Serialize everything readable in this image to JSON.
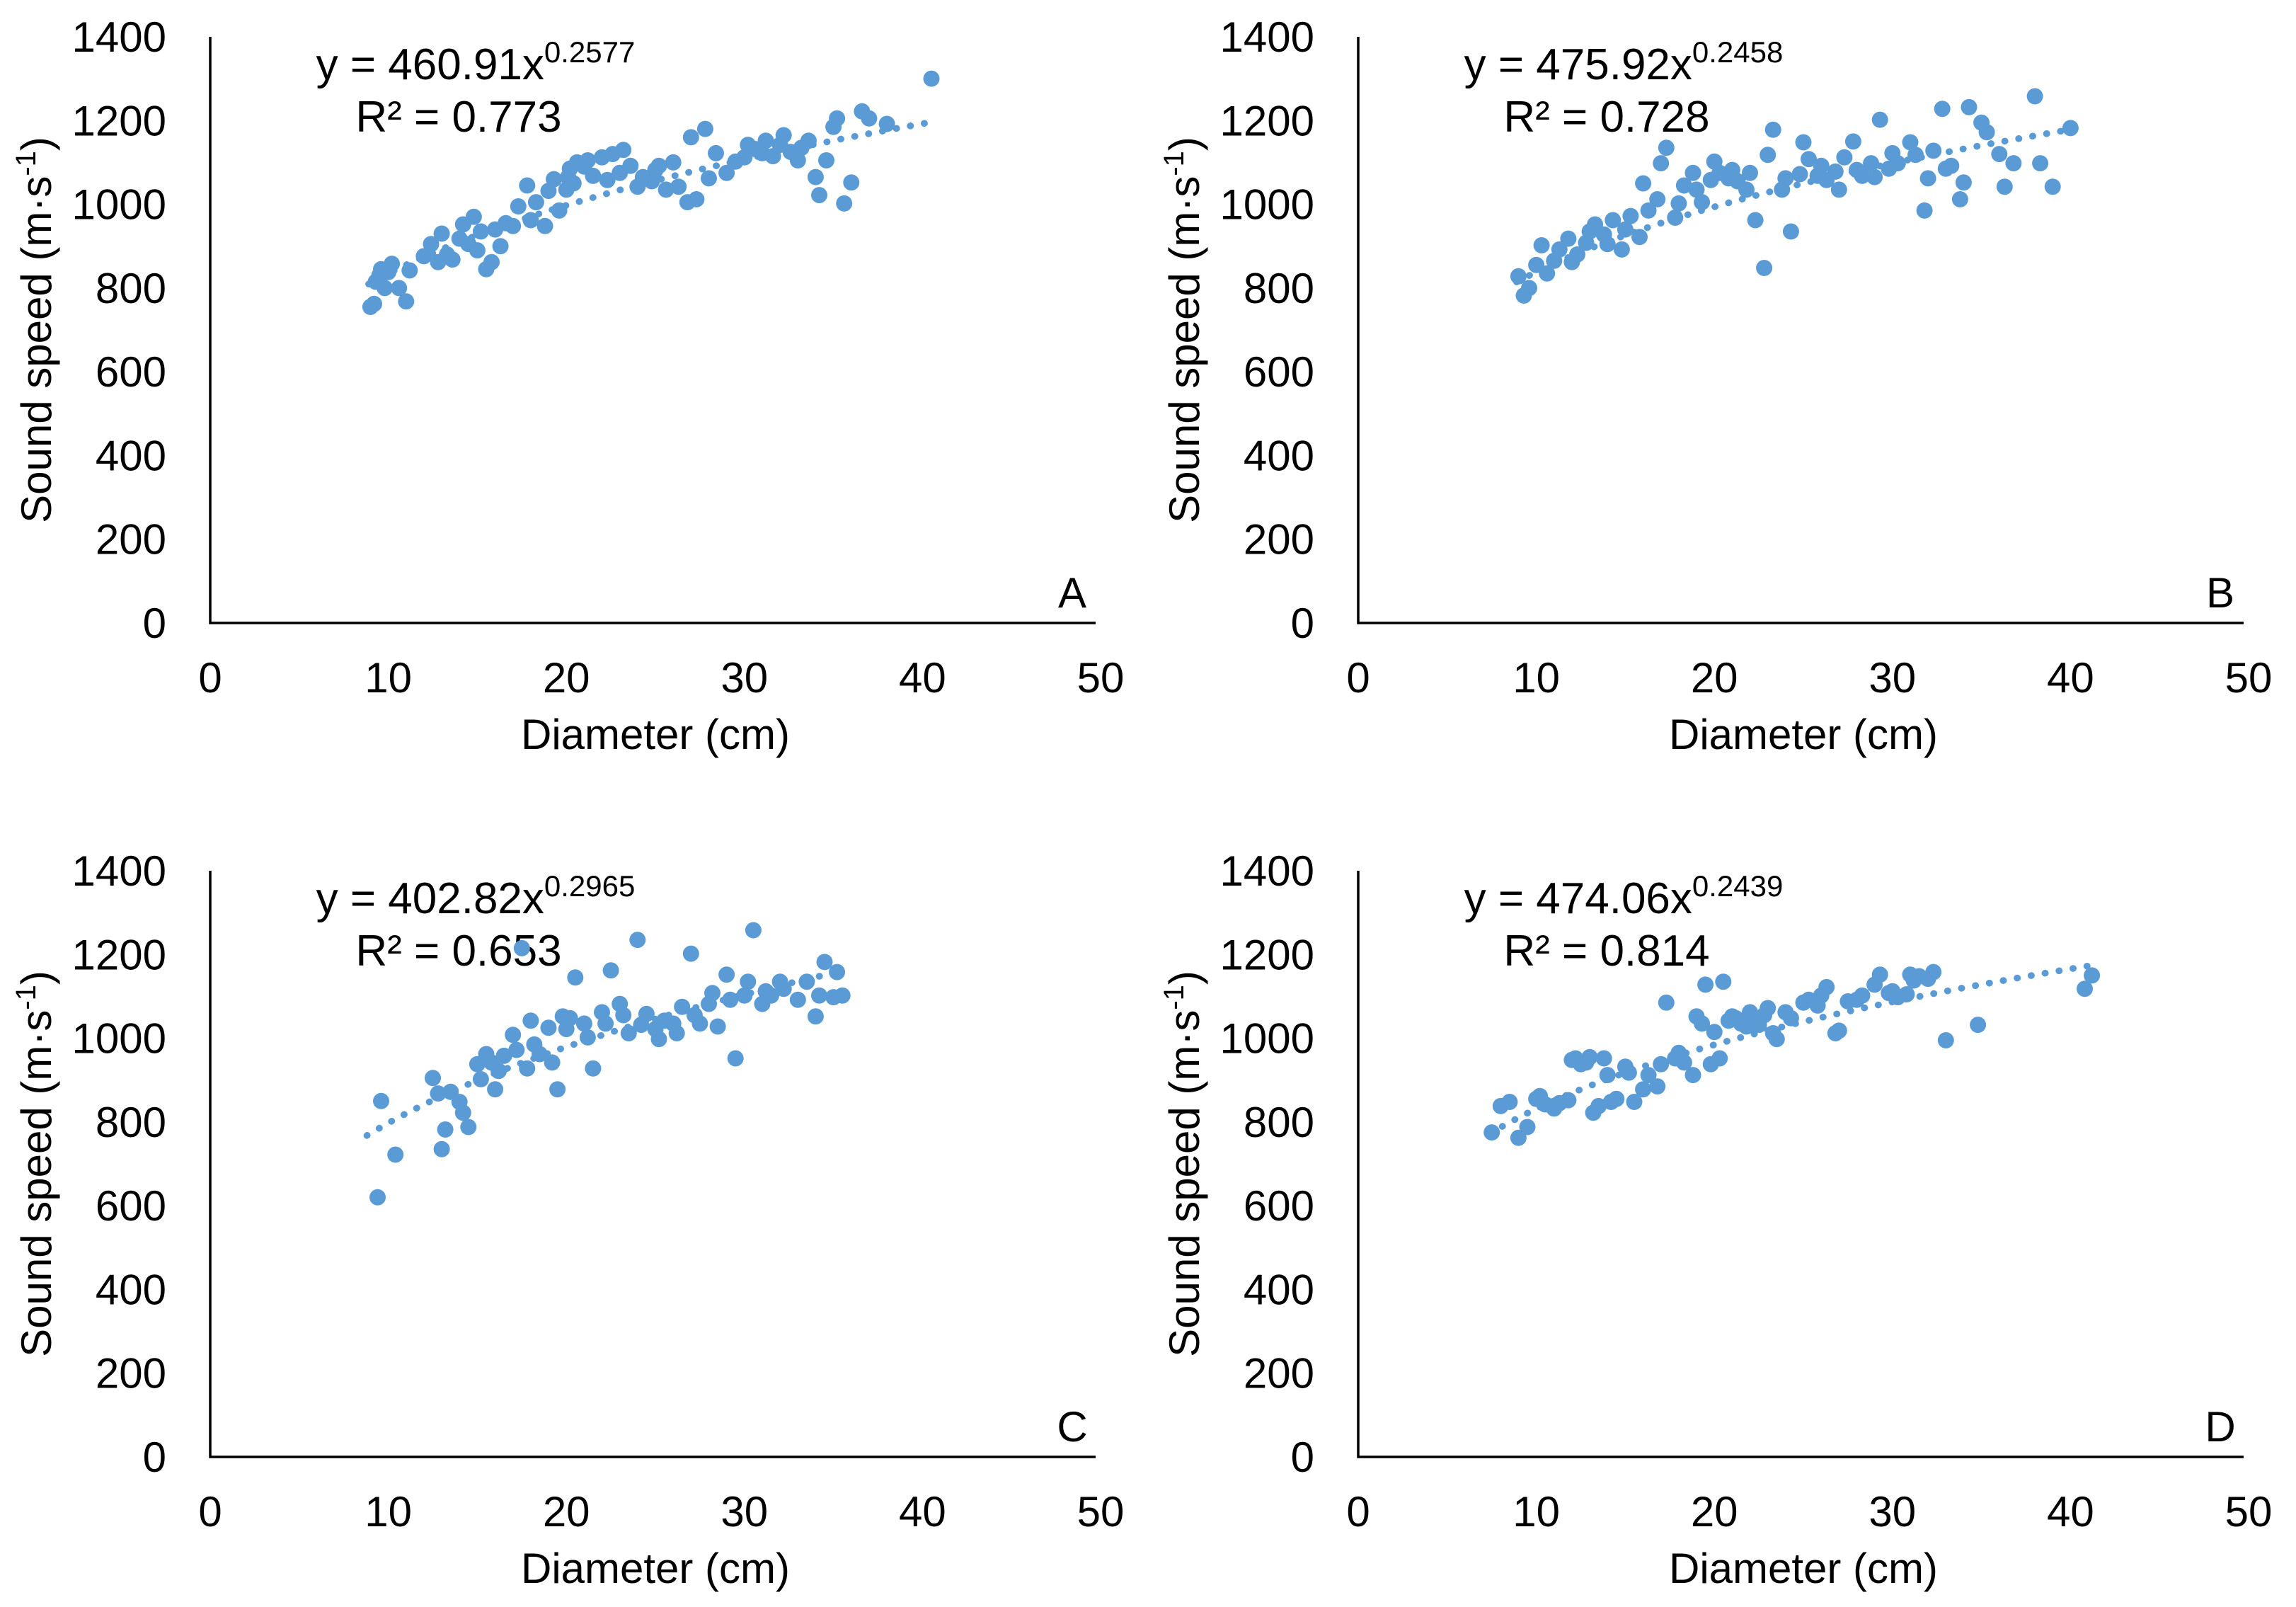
{
  "figure": {
    "background": "#ffffff",
    "dot_color": "#5B9BD5",
    "trend_color": "#5B9BD5",
    "axis_color": "#000000",
    "text_color": "#000000",
    "xlabel": "Diameter (cm)",
    "ylabel": "Sound speed (m·s⁻¹)",
    "ylabel_prefix": "Sound speed (m·s",
    "ylabel_sup": "-1",
    "ylabel_suffix": ")",
    "xticks": [
      0,
      10,
      20,
      30,
      40,
      50
    ],
    "yticks": [
      0,
      200,
      400,
      600,
      800,
      1000,
      1200,
      1400
    ],
    "xlim": [
      0,
      50
    ],
    "ylim": [
      0,
      1400
    ],
    "grid": false,
    "legend": "none"
  },
  "chart_data": [
    {
      "type": "scatter",
      "panel_label": "A",
      "title": "",
      "xlabel": "Diameter (cm)",
      "ylabel": "Sound speed (m·s⁻¹)",
      "equation": "y = 460.91x^0.2577",
      "equation_prefix": "y = 460.91x",
      "equation_exponent": "0.2577",
      "r2_label": "R² = 0.773",
      "trend": {
        "a": 460.91,
        "b": 0.2577,
        "x_min": 8.9,
        "x_max": 40.2
      },
      "points": [
        [
          9,
          755
        ],
        [
          9.2,
          762
        ],
        [
          9.3,
          815
        ],
        [
          9.5,
          830
        ],
        [
          9.6,
          845
        ],
        [
          9.8,
          800
        ],
        [
          10,
          838
        ],
        [
          10.2,
          858
        ],
        [
          10.6,
          800
        ],
        [
          11,
          768
        ],
        [
          11.2,
          842
        ],
        [
          12,
          876
        ],
        [
          12.4,
          905
        ],
        [
          12.8,
          862
        ],
        [
          13,
          930
        ],
        [
          13.3,
          880
        ],
        [
          13.6,
          868
        ],
        [
          14,
          918
        ],
        [
          14.2,
          952
        ],
        [
          14.5,
          905
        ],
        [
          14.8,
          970
        ],
        [
          15,
          890
        ],
        [
          15.2,
          935
        ],
        [
          15.5,
          845
        ],
        [
          15.8,
          862
        ],
        [
          16,
          940
        ],
        [
          16.3,
          900
        ],
        [
          16.6,
          955
        ],
        [
          17,
          948
        ],
        [
          17.3,
          995
        ],
        [
          17.8,
          1045
        ],
        [
          18,
          962
        ],
        [
          18.3,
          1005
        ],
        [
          18.8,
          948
        ],
        [
          19,
          1032
        ],
        [
          19.3,
          1060
        ],
        [
          19.6,
          985
        ],
        [
          20,
          1035
        ],
        [
          20.1,
          1065
        ],
        [
          20.2,
          1085
        ],
        [
          20.4,
          1050
        ],
        [
          20.6,
          1100
        ],
        [
          21,
          1090
        ],
        [
          21.2,
          1105
        ],
        [
          21.5,
          1068
        ],
        [
          22,
          1112
        ],
        [
          22.3,
          1058
        ],
        [
          22.6,
          1120
        ],
        [
          23,
          1075
        ],
        [
          23.2,
          1130
        ],
        [
          23.6,
          1092
        ],
        [
          24,
          1042
        ],
        [
          24.3,
          1065
        ],
        [
          24.8,
          1055
        ],
        [
          25,
          1082
        ],
        [
          25.2,
          1092
        ],
        [
          25.6,
          1035
        ],
        [
          26,
          1100
        ],
        [
          26.3,
          1042
        ],
        [
          26.8,
          1005
        ],
        [
          27,
          1160
        ],
        [
          27.3,
          1012
        ],
        [
          27.8,
          1180
        ],
        [
          28,
          1062
        ],
        [
          28.4,
          1122
        ],
        [
          29,
          1075
        ],
        [
          29.5,
          1102
        ],
        [
          30,
          1112
        ],
        [
          30.2,
          1142
        ],
        [
          30.6,
          1132
        ],
        [
          31,
          1122
        ],
        [
          31.2,
          1152
        ],
        [
          31.6,
          1115
        ],
        [
          32,
          1142
        ],
        [
          32.2,
          1165
        ],
        [
          32.6,
          1125
        ],
        [
          33,
          1105
        ],
        [
          33.2,
          1135
        ],
        [
          33.6,
          1152
        ],
        [
          34,
          1065
        ],
        [
          34.2,
          1022
        ],
        [
          34.6,
          1105
        ],
        [
          35,
          1185
        ],
        [
          35.2,
          1205
        ],
        [
          35.6,
          1002
        ],
        [
          36,
          1052
        ],
        [
          36.6,
          1222
        ],
        [
          37,
          1205
        ],
        [
          38,
          1192
        ],
        [
          40.5,
          1300
        ]
      ]
    },
    {
      "type": "scatter",
      "panel_label": "B",
      "title": "",
      "xlabel": "Diameter (cm)",
      "ylabel": "Sound speed (m·s⁻¹)",
      "equation": "y = 475.92x^0.2458",
      "equation_prefix": "y = 475.92x",
      "equation_exponent": "0.2458",
      "r2_label": "R² = 0.728",
      "trend": {
        "a": 475.92,
        "b": 0.2458,
        "x_min": 8.9,
        "x_max": 40.2
      },
      "points": [
        [
          9,
          828
        ],
        [
          9.3,
          782
        ],
        [
          9.6,
          800
        ],
        [
          10,
          855
        ],
        [
          10.3,
          902
        ],
        [
          10.6,
          835
        ],
        [
          11,
          865
        ],
        [
          11.3,
          892
        ],
        [
          11.8,
          918
        ],
        [
          12,
          862
        ],
        [
          12.3,
          880
        ],
        [
          12.8,
          908
        ],
        [
          13,
          935
        ],
        [
          13.3,
          952
        ],
        [
          13.8,
          928
        ],
        [
          14,
          905
        ],
        [
          14.3,
          962
        ],
        [
          14.8,
          892
        ],
        [
          15,
          940
        ],
        [
          15.3,
          972
        ],
        [
          15.8,
          922
        ],
        [
          16,
          1050
        ],
        [
          16.3,
          985
        ],
        [
          16.8,
          1012
        ],
        [
          17,
          1098
        ],
        [
          17.3,
          1135
        ],
        [
          17.8,
          968
        ],
        [
          18,
          1002
        ],
        [
          18.3,
          1045
        ],
        [
          18.8,
          1075
        ],
        [
          19,
          1035
        ],
        [
          19.3,
          1005
        ],
        [
          19.8,
          1058
        ],
        [
          20,
          1102
        ],
        [
          20.3,
          1075
        ],
        [
          20.8,
          1062
        ],
        [
          21,
          1082
        ],
        [
          21.3,
          1055
        ],
        [
          21.8,
          1035
        ],
        [
          22,
          1075
        ],
        [
          22.3,
          962
        ],
        [
          22.8,
          848
        ],
        [
          23,
          1118
        ],
        [
          23.3,
          1178
        ],
        [
          23.8,
          1035
        ],
        [
          24,
          1062
        ],
        [
          24.3,
          935
        ],
        [
          24.8,
          1072
        ],
        [
          25,
          1148
        ],
        [
          25.3,
          1108
        ],
        [
          25.8,
          1068
        ],
        [
          26,
          1092
        ],
        [
          26.3,
          1058
        ],
        [
          26.8,
          1078
        ],
        [
          27,
          1035
        ],
        [
          27.3,
          1112
        ],
        [
          27.8,
          1150
        ],
        [
          28,
          1082
        ],
        [
          28.3,
          1068
        ],
        [
          28.8,
          1098
        ],
        [
          29,
          1065
        ],
        [
          29.3,
          1202
        ],
        [
          29.8,
          1085
        ],
        [
          30,
          1122
        ],
        [
          30.3,
          1098
        ],
        [
          31,
          1148
        ],
        [
          31.3,
          1118
        ],
        [
          31.8,
          985
        ],
        [
          32,
          1062
        ],
        [
          32.3,
          1128
        ],
        [
          32.8,
          1228
        ],
        [
          33,
          1085
        ],
        [
          33.3,
          1092
        ],
        [
          33.8,
          1012
        ],
        [
          34,
          1052
        ],
        [
          34.3,
          1232
        ],
        [
          35,
          1195
        ],
        [
          35.3,
          1172
        ],
        [
          36,
          1120
        ],
        [
          36.3,
          1042
        ],
        [
          36.8,
          1098
        ],
        [
          38,
          1258
        ],
        [
          38.3,
          1098
        ],
        [
          39,
          1042
        ],
        [
          40,
          1182
        ]
      ]
    },
    {
      "type": "scatter",
      "panel_label": "C",
      "title": "",
      "xlabel": "Diameter (cm)",
      "ylabel": "Sound speed (m·s⁻¹)",
      "equation": "y = 402.82x^0.2965",
      "equation_prefix": "y = 402.82x",
      "equation_exponent": "0.2965",
      "r2_label": "R² = 0.653",
      "trend": {
        "a": 402.82,
        "b": 0.2965,
        "x_min": 8.8,
        "x_max": 35.6
      },
      "points": [
        [
          9.4,
          620
        ],
        [
          9.6,
          850
        ],
        [
          10.4,
          722
        ],
        [
          12.5,
          905
        ],
        [
          12.8,
          868
        ],
        [
          13,
          735
        ],
        [
          13.2,
          782
        ],
        [
          13.5,
          872
        ],
        [
          14,
          848
        ],
        [
          14.2,
          822
        ],
        [
          14.5,
          788
        ],
        [
          15,
          938
        ],
        [
          15.2,
          902
        ],
        [
          15.5,
          962
        ],
        [
          15.8,
          942
        ],
        [
          16,
          878
        ],
        [
          16.2,
          922
        ],
        [
          16.5,
          958
        ],
        [
          17,
          1008
        ],
        [
          17.2,
          972
        ],
        [
          17.5,
          1215
        ],
        [
          17.8,
          928
        ],
        [
          18,
          1042
        ],
        [
          18.2,
          985
        ],
        [
          18.5,
          962
        ],
        [
          19,
          1025
        ],
        [
          19.2,
          942
        ],
        [
          19.5,
          878
        ],
        [
          19.8,
          1052
        ],
        [
          20,
          1022
        ],
        [
          20.2,
          1048
        ],
        [
          20.5,
          1145
        ],
        [
          21,
          1035
        ],
        [
          21.2,
          1002
        ],
        [
          21.5,
          928
        ],
        [
          22,
          1062
        ],
        [
          22.2,
          1035
        ],
        [
          22.5,
          1162
        ],
        [
          23,
          1082
        ],
        [
          23.2,
          1055
        ],
        [
          23.5,
          1012
        ],
        [
          24,
          1235
        ],
        [
          24.2,
          1032
        ],
        [
          24.5,
          1058
        ],
        [
          25,
          1022
        ],
        [
          25.2,
          998
        ],
        [
          25.5,
          1042
        ],
        [
          26,
          1035
        ],
        [
          26.2,
          1012
        ],
        [
          26.5,
          1075
        ],
        [
          27,
          1202
        ],
        [
          27.2,
          1055
        ],
        [
          27.5,
          1035
        ],
        [
          28,
          1082
        ],
        [
          28.2,
          1108
        ],
        [
          28.5,
          1028
        ],
        [
          29,
          1152
        ],
        [
          29.2,
          1092
        ],
        [
          29.5,
          952
        ],
        [
          30,
          1102
        ],
        [
          30.2,
          1135
        ],
        [
          30.5,
          1258
        ],
        [
          31,
          1082
        ],
        [
          31.2,
          1112
        ],
        [
          31.5,
          1102
        ],
        [
          32,
          1135
        ],
        [
          32.2,
          1118
        ],
        [
          33,
          1092
        ],
        [
          33.5,
          1135
        ],
        [
          34,
          1052
        ],
        [
          34.2,
          1102
        ],
        [
          34.5,
          1182
        ],
        [
          35,
          1098
        ],
        [
          35.2,
          1158
        ],
        [
          35.5,
          1102
        ]
      ]
    },
    {
      "type": "scatter",
      "panel_label": "D",
      "title": "",
      "xlabel": "Diameter (cm)",
      "ylabel": "Sound speed (m·s⁻¹)",
      "equation": "y = 474.06x^0.2439",
      "equation_prefix": "y = 474.06x",
      "equation_exponent": "0.2439",
      "r2_label": "R² = 0.814",
      "trend": {
        "a": 474.06,
        "b": 0.2439,
        "x_min": 7.4,
        "x_max": 41.3
      },
      "points": [
        [
          7.5,
          775
        ],
        [
          8,
          838
        ],
        [
          8.5,
          848
        ],
        [
          9,
          762
        ],
        [
          9.5,
          788
        ],
        [
          10,
          855
        ],
        [
          10.2,
          862
        ],
        [
          10.5,
          842
        ],
        [
          11,
          832
        ],
        [
          11.3,
          845
        ],
        [
          11.8,
          852
        ],
        [
          12,
          948
        ],
        [
          12.2,
          952
        ],
        [
          12.5,
          938
        ],
        [
          12.8,
          942
        ],
        [
          13,
          955
        ],
        [
          13.2,
          822
        ],
        [
          13.5,
          838
        ],
        [
          13.8,
          952
        ],
        [
          14,
          912
        ],
        [
          14.2,
          848
        ],
        [
          14.5,
          855
        ],
        [
          15,
          932
        ],
        [
          15.2,
          918
        ],
        [
          15.5,
          848
        ],
        [
          16,
          878
        ],
        [
          16.3,
          912
        ],
        [
          16.8,
          885
        ],
        [
          17,
          938
        ],
        [
          17.3,
          1085
        ],
        [
          17.8,
          952
        ],
        [
          18,
          965
        ],
        [
          18.3,
          942
        ],
        [
          18.8,
          912
        ],
        [
          19,
          1052
        ],
        [
          19.3,
          1035
        ],
        [
          19.5,
          1128
        ],
        [
          19.8,
          938
        ],
        [
          20,
          1015
        ],
        [
          20.3,
          952
        ],
        [
          20.5,
          1135
        ],
        [
          20.8,
          1042
        ],
        [
          21,
          1052
        ],
        [
          21.2,
          1048
        ],
        [
          21.5,
          1035
        ],
        [
          21.8,
          1028
        ],
        [
          22,
          1062
        ],
        [
          22.2,
          1048
        ],
        [
          22.5,
          1032
        ],
        [
          22.8,
          1055
        ],
        [
          23,
          1072
        ],
        [
          23.3,
          1012
        ],
        [
          23.5,
          998
        ],
        [
          24,
          1062
        ],
        [
          24.3,
          1048
        ],
        [
          25,
          1085
        ],
        [
          25.3,
          1092
        ],
        [
          25.8,
          1078
        ],
        [
          26,
          1102
        ],
        [
          26.3,
          1122
        ],
        [
          26.8,
          1012
        ],
        [
          27,
          1018
        ],
        [
          27.5,
          1088
        ],
        [
          28,
          1092
        ],
        [
          28.3,
          1102
        ],
        [
          29,
          1128
        ],
        [
          29.3,
          1152
        ],
        [
          29.8,
          1108
        ],
        [
          30,
          1112
        ],
        [
          30.3,
          1098
        ],
        [
          30.8,
          1105
        ],
        [
          31,
          1152
        ],
        [
          31.2,
          1138
        ],
        [
          31.5,
          1148
        ],
        [
          32,
          1142
        ],
        [
          32.3,
          1158
        ],
        [
          33,
          995
        ],
        [
          34.8,
          1032
        ],
        [
          40.8,
          1118
        ],
        [
          41.2,
          1150
        ]
      ]
    }
  ]
}
